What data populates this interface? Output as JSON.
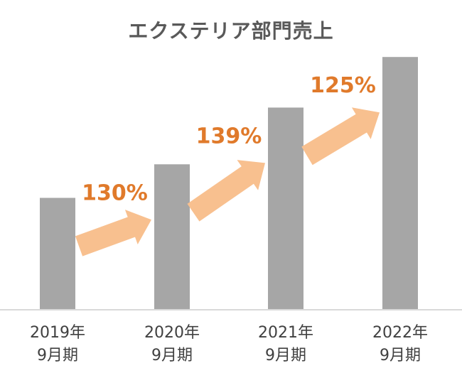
{
  "chart_data": {
    "type": "bar",
    "title": "エクステリア部門売上",
    "xlabel": "",
    "ylabel": "",
    "categories": [
      [
        "2019年",
        "9月期"
      ],
      [
        "2020年",
        "9月期"
      ],
      [
        "2021年",
        "9月期"
      ],
      [
        "2022年",
        "9月期"
      ]
    ],
    "values": [
      100,
      130,
      180.7,
      225.9
    ],
    "ylim": [
      0,
      240
    ],
    "grid": false,
    "legend": "none",
    "bar_color": "#a6a6a6",
    "growth_annotations": [
      {
        "from": 0,
        "to": 1,
        "label": "130%"
      },
      {
        "from": 1,
        "to": 2,
        "label": "139%"
      },
      {
        "from": 2,
        "to": 3,
        "label": "125%"
      }
    ],
    "annotation_color": "#e07a2b",
    "arrow_color": "#f8c08f"
  }
}
